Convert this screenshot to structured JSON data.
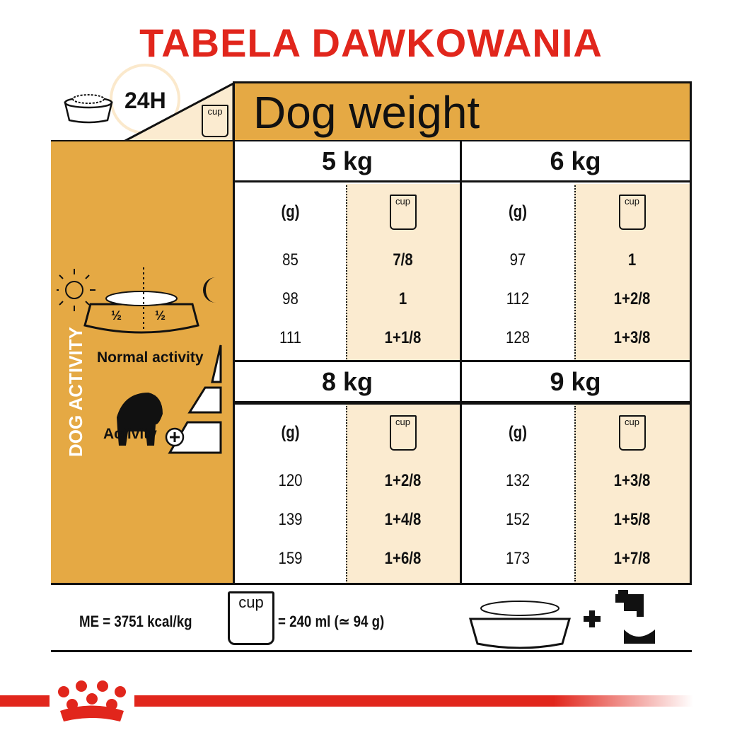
{
  "title": "TABELA DAWKOWANIA",
  "header": {
    "period": "24H",
    "cup_label": "cup",
    "dog_weight": "Dog weight"
  },
  "side": {
    "vertical_label": "DOG ACTIVITY",
    "half_left": "½",
    "half_right": "½",
    "normal_activity": "Normal activity",
    "activity_plus": "Activity"
  },
  "blocks": [
    {
      "weight": "5 kg",
      "col_g": "(g)",
      "cup": "cup",
      "rows": [
        [
          "85",
          "7/8"
        ],
        [
          "98",
          "1"
        ],
        [
          "111",
          "1+1/8"
        ]
      ]
    },
    {
      "weight": "6 kg",
      "col_g": "(g)",
      "cup": "cup",
      "rows": [
        [
          "97",
          "1"
        ],
        [
          "112",
          "1+2/8"
        ],
        [
          "128",
          "1+3/8"
        ]
      ]
    },
    {
      "weight": "8 kg",
      "col_g": "(g)",
      "cup": "cup",
      "rows": [
        [
          "120",
          "1+2/8"
        ],
        [
          "139",
          "1+4/8"
        ],
        [
          "159",
          "1+6/8"
        ]
      ]
    },
    {
      "weight": "9 kg",
      "col_g": "(g)",
      "cup": "cup",
      "rows": [
        [
          "132",
          "1+3/8"
        ],
        [
          "152",
          "1+5/8"
        ],
        [
          "173",
          "1+7/8"
        ]
      ]
    }
  ],
  "footer": {
    "me": "ME = 3751 kcal/kg",
    "cup": "cup",
    "cup_eq": "= 240 ml (≃ 94 g)",
    "plus": "+"
  },
  "colors": {
    "title": "#e1261c",
    "orange": "#e5a944",
    "cream": "#fbebd0",
    "brand_red": "#e1261c"
  }
}
